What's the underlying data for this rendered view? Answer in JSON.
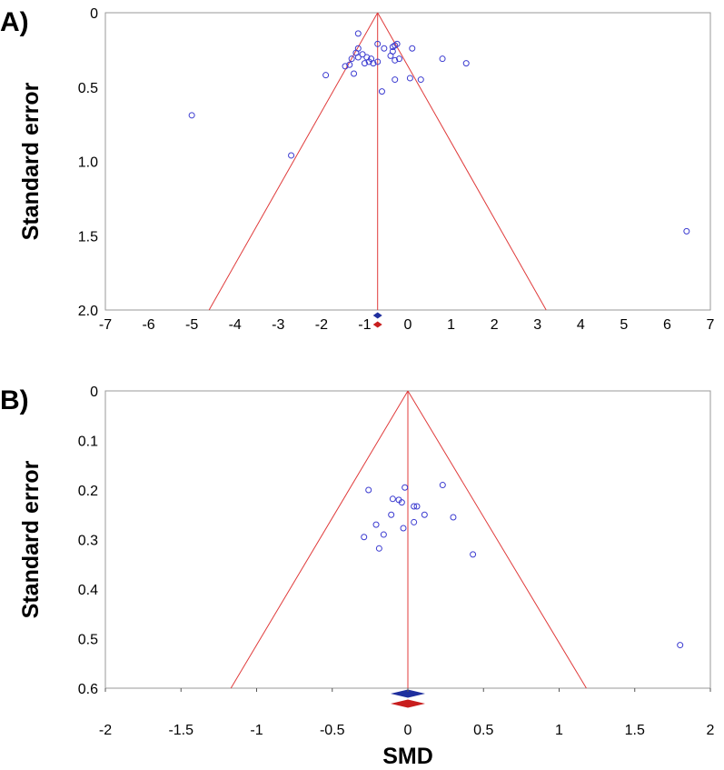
{
  "chart_data": [
    {
      "type": "scatter",
      "panel_label": "A)",
      "title": "",
      "xlabel": "",
      "ylabel": "Standard error",
      "xlim": [
        -7,
        7
      ],
      "ylim": [
        0,
        2.0
      ],
      "y_inverted": true,
      "x_ticks": [
        "-7",
        "-6",
        "-5",
        "-4",
        "-3",
        "-2",
        "-1",
        "0",
        "1",
        "2",
        "3",
        "4",
        "5",
        "6",
        "7"
      ],
      "y_ticks": [
        "0",
        "0.5",
        "1.0",
        "1.5",
        "2.0"
      ],
      "pooled_estimate": -0.7,
      "funnel": {
        "apex": [
          -0.7,
          0
        ],
        "base_left": -4.6,
        "base_right": 3.2,
        "base_se": 2.0
      },
      "diamonds": [
        {
          "name": "observed",
          "center": -0.7,
          "color": "#1f2f9e"
        },
        {
          "name": "adjusted",
          "center": -0.7,
          "color": "#c81e1e"
        }
      ],
      "points": [
        [
          -1.15,
          0.14
        ],
        [
          -1.15,
          0.24
        ],
        [
          -1.2,
          0.27
        ],
        [
          -1.05,
          0.28
        ],
        [
          -1.3,
          0.31
        ],
        [
          -1.15,
          0.3
        ],
        [
          -0.95,
          0.3
        ],
        [
          -0.85,
          0.31
        ],
        [
          -1.45,
          0.36
        ],
        [
          -1.35,
          0.35
        ],
        [
          -1.0,
          0.34
        ],
        [
          -0.9,
          0.33
        ],
        [
          -0.8,
          0.34
        ],
        [
          -0.7,
          0.33
        ],
        [
          -0.7,
          0.21
        ],
        [
          -0.55,
          0.24
        ],
        [
          -0.4,
          0.29
        ],
        [
          -0.35,
          0.23
        ],
        [
          -0.3,
          0.22
        ],
        [
          -0.25,
          0.21
        ],
        [
          -0.35,
          0.26
        ],
        [
          -0.3,
          0.32
        ],
        [
          -0.2,
          0.31
        ],
        [
          0.1,
          0.24
        ],
        [
          -1.25,
          0.41
        ],
        [
          -1.9,
          0.42
        ],
        [
          -0.3,
          0.45
        ],
        [
          0.05,
          0.44
        ],
        [
          0.3,
          0.45
        ],
        [
          -0.6,
          0.53
        ],
        [
          0.8,
          0.31
        ],
        [
          1.35,
          0.34
        ],
        [
          -5.0,
          0.69
        ],
        [
          -2.7,
          0.96
        ],
        [
          6.45,
          1.47
        ]
      ]
    },
    {
      "type": "scatter",
      "panel_label": "B)",
      "title": "",
      "xlabel": "SMD",
      "ylabel": "Standard error",
      "xlim": [
        -2,
        2
      ],
      "ylim": [
        0,
        0.6
      ],
      "y_inverted": true,
      "x_ticks": [
        "-2",
        "-1.5",
        "-1",
        "-0.5",
        "0",
        "0.5",
        "1",
        "1.5",
        "2"
      ],
      "y_ticks": [
        "0",
        "0.1",
        "0.2",
        "0.3",
        "0.4",
        "0.5",
        "0.6"
      ],
      "pooled_estimate": 0.0,
      "funnel": {
        "apex": [
          0.0,
          0
        ],
        "base_left": -1.17,
        "base_right": 1.18,
        "base_se": 0.6
      },
      "diamonds": [
        {
          "name": "observed",
          "center": 0.0,
          "color": "#1f2f9e"
        },
        {
          "name": "adjusted",
          "center": 0.0,
          "color": "#c81e1e"
        }
      ],
      "points": [
        [
          -0.26,
          0.2
        ],
        [
          -0.02,
          0.195
        ],
        [
          0.23,
          0.19
        ],
        [
          -0.1,
          0.218
        ],
        [
          -0.06,
          0.22
        ],
        [
          -0.04,
          0.225
        ],
        [
          0.04,
          0.233
        ],
        [
          0.06,
          0.233
        ],
        [
          -0.11,
          0.25
        ],
        [
          0.11,
          0.25
        ],
        [
          0.3,
          0.255
        ],
        [
          0.04,
          0.265
        ],
        [
          -0.21,
          0.27
        ],
        [
          -0.03,
          0.277
        ],
        [
          -0.16,
          0.29
        ],
        [
          -0.29,
          0.295
        ],
        [
          -0.19,
          0.318
        ],
        [
          0.43,
          0.33
        ],
        [
          1.8,
          0.513
        ]
      ]
    }
  ]
}
